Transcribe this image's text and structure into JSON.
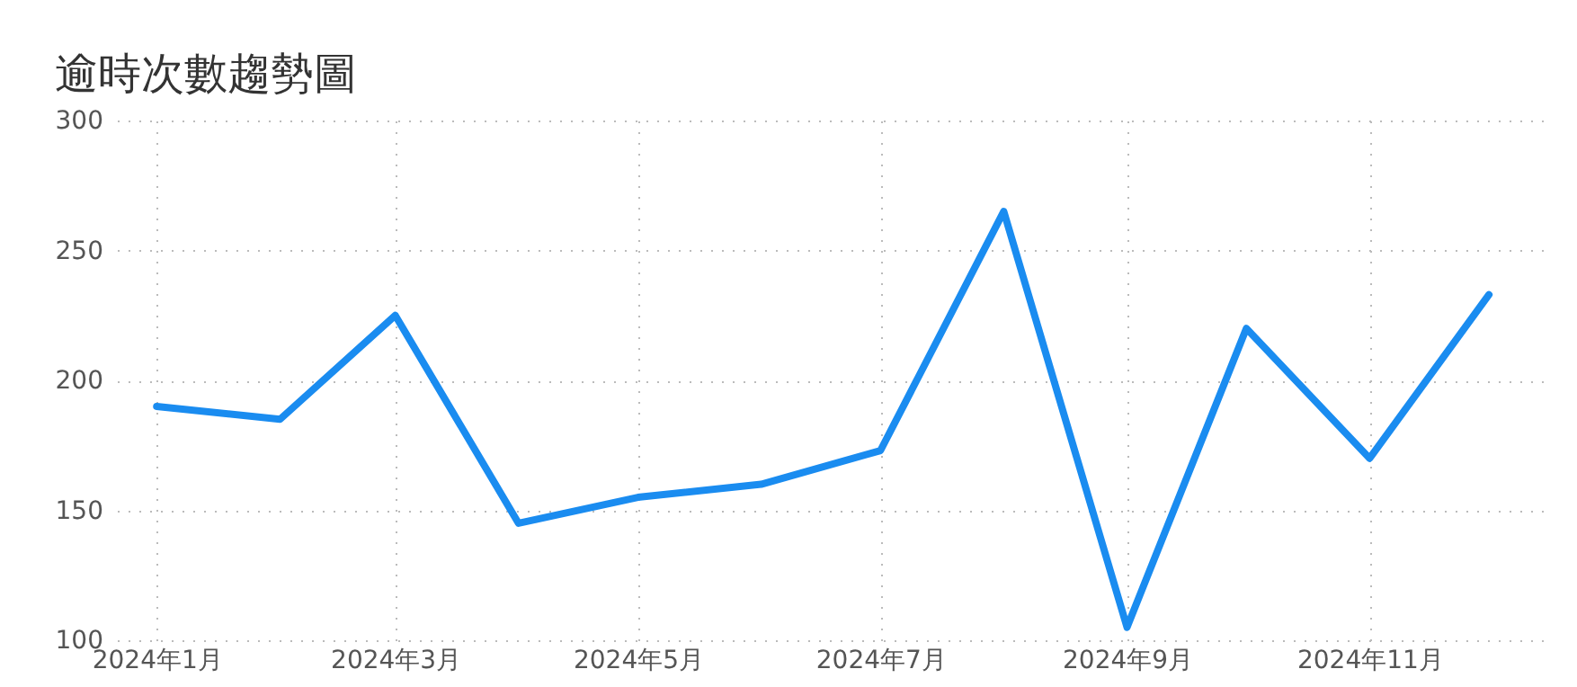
{
  "chart_data": {
    "type": "line",
    "title": "逾時次數趨勢圖",
    "x": [
      "2024-01",
      "2024-02",
      "2024-03",
      "2024-04",
      "2024-05",
      "2024-06",
      "2024-07",
      "2024-08",
      "2024-09",
      "2024-10",
      "2024-11",
      "2024-12"
    ],
    "series": [
      {
        "color": "#1a8cf0",
        "values": [
          190,
          185,
          225,
          145,
          155,
          160,
          173,
          265,
          105,
          220,
          170,
          233
        ]
      }
    ],
    "xlim": [
      "2023-12-22",
      "2024-12-15"
    ],
    "xticks": [
      {
        "value": "2024-01",
        "label": "2024年1月"
      },
      {
        "value": "2024-03",
        "label": "2024年3月"
      },
      {
        "value": "2024-05",
        "label": "2024年5月"
      },
      {
        "value": "2024-07",
        "label": "2024年7月"
      },
      {
        "value": "2024-09",
        "label": "2024年9月"
      },
      {
        "value": "2024-11",
        "label": "2024年11月"
      }
    ],
    "ylim": [
      100,
      300
    ],
    "yticks": [
      100,
      150,
      200,
      250,
      300
    ],
    "grid": true,
    "marker": "none",
    "line_style": "solid"
  }
}
